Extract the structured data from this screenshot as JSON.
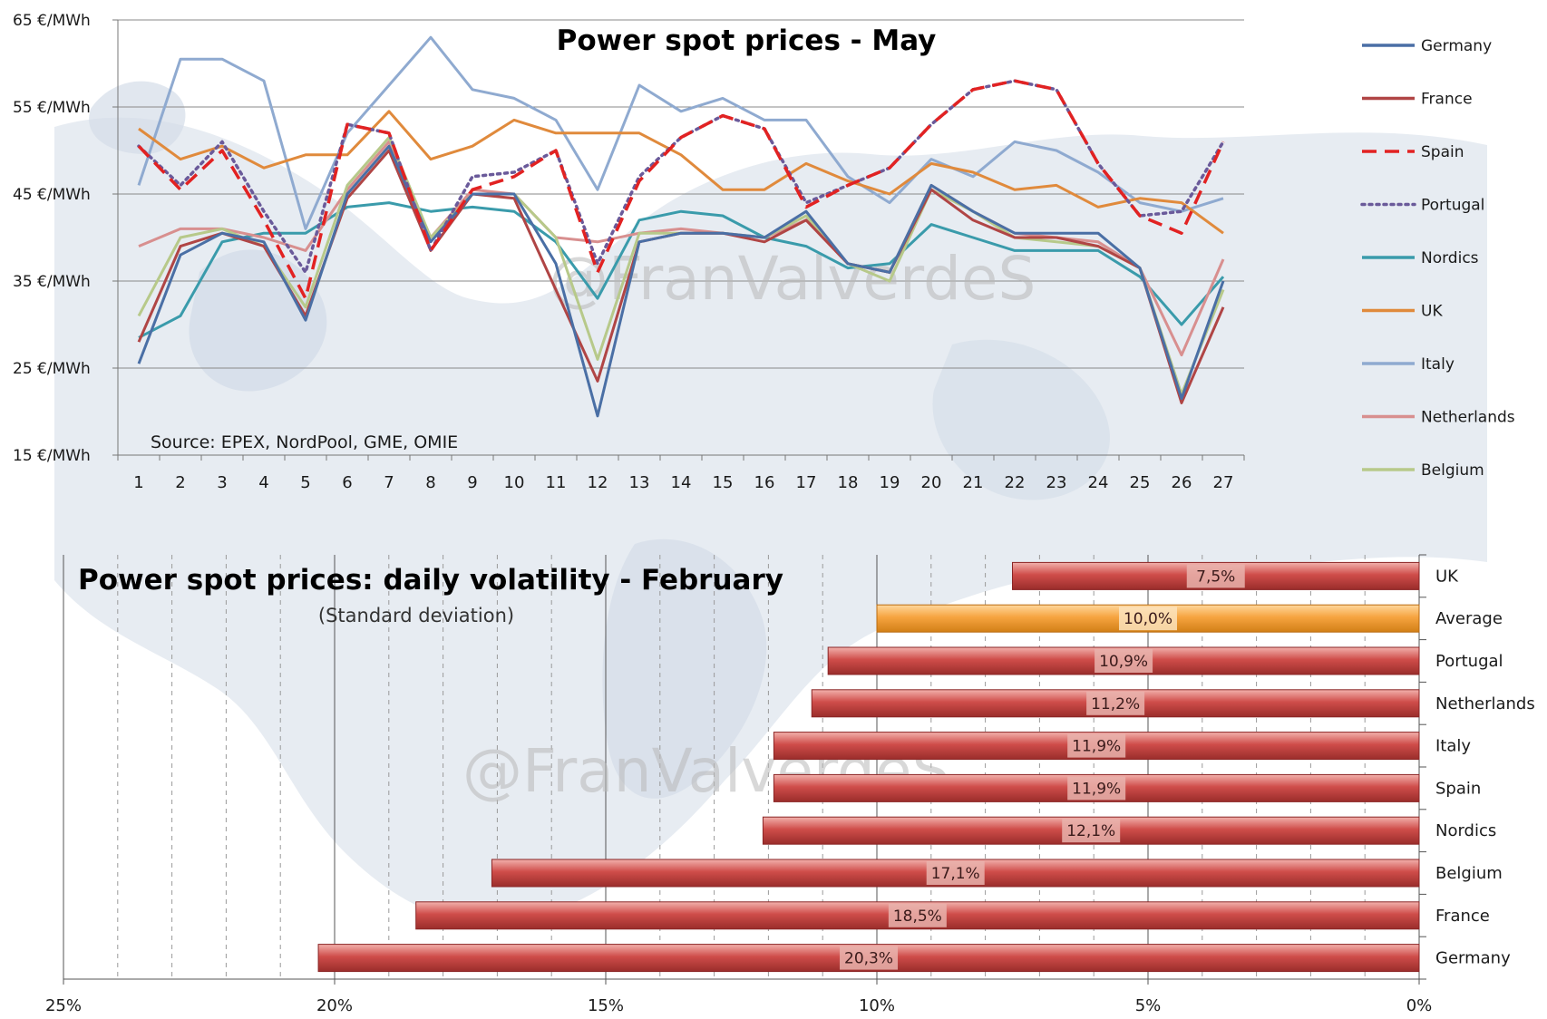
{
  "chart_data": [
    {
      "type": "line",
      "title": "Power spot prices - May",
      "source": "Source: EPEX, NordPool, GME, OMIE",
      "watermark": "@FranValverdeS",
      "ylim": [
        15,
        65
      ],
      "y_ticks": [
        "15 €/MWh",
        "25 €/MWh",
        "35 €/MWh",
        "45 €/MWh",
        "55 €/MWh",
        "65 €/MWh"
      ],
      "x": [
        "1",
        "2",
        "3",
        "4",
        "5",
        "6",
        "7",
        "8",
        "9",
        "10",
        "11",
        "12",
        "13",
        "14",
        "15",
        "16",
        "17",
        "18",
        "19",
        "20",
        "21",
        "22",
        "23",
        "24",
        "25",
        "26",
        "27"
      ],
      "grid": true,
      "legend_position": "right",
      "series": [
        {
          "name": "Germany",
          "color": "#4a6fa5",
          "dash": "solid",
          "values": [
            25.5,
            38,
            40.5,
            39.5,
            30.5,
            45,
            50.5,
            39.5,
            45,
            45,
            37,
            19.5,
            39.5,
            40.5,
            40.5,
            40,
            43,
            37,
            36,
            46,
            43,
            40.5,
            40.5,
            40.5,
            36.5,
            21.5,
            35
          ]
        },
        {
          "name": "France",
          "color": "#b04545",
          "dash": "solid",
          "values": [
            28,
            39,
            40.5,
            39,
            31,
            44.5,
            50,
            38.5,
            45,
            44.5,
            34,
            23.5,
            39.5,
            40.5,
            40.5,
            39.5,
            42,
            37,
            36,
            45.5,
            42,
            40,
            40,
            39,
            36.5,
            21,
            32
          ]
        },
        {
          "name": "Spain",
          "color": "#e22222",
          "dash": "dash",
          "values": [
            50.5,
            45.5,
            50,
            42,
            33,
            53,
            52,
            38.5,
            45.5,
            47,
            50,
            36,
            46.5,
            51.5,
            54,
            52.5,
            43.5,
            46,
            48,
            53,
            57,
            58,
            57,
            48.5,
            42.5,
            40.5,
            51
          ]
        },
        {
          "name": "Portugal",
          "color": "#6a5a9a",
          "dash": "dot",
          "values": [
            50.5,
            46,
            51,
            43,
            36,
            53,
            52,
            38.5,
            47,
            47.5,
            50,
            37,
            47,
            51.5,
            54,
            52.5,
            44,
            46,
            48,
            53,
            57,
            58,
            57,
            48.5,
            42.5,
            43,
            51
          ]
        },
        {
          "name": "Nordics",
          "color": "#3a9bab",
          "dash": "solid",
          "values": [
            28.5,
            31,
            39.5,
            40.5,
            40.5,
            43.5,
            44,
            43,
            43.5,
            43,
            39.5,
            33,
            42,
            43,
            42.5,
            40,
            39,
            36.5,
            37,
            41.5,
            40,
            38.5,
            38.5,
            38.5,
            35.5,
            30,
            35.5
          ]
        },
        {
          "name": "UK",
          "color": "#e08a3c",
          "dash": "solid",
          "values": [
            52.5,
            49,
            50.5,
            48,
            49.5,
            49.5,
            54.5,
            49,
            50.5,
            53.5,
            52,
            52,
            52,
            49.5,
            45.5,
            45.5,
            48.5,
            46.5,
            45,
            48.5,
            47.5,
            45.5,
            46,
            43.5,
            44.5,
            44,
            40.5
          ]
        },
        {
          "name": "Italy",
          "color": "#8faad0",
          "dash": "solid",
          "values": [
            46,
            60.5,
            60.5,
            58,
            41,
            52,
            57.5,
            63,
            57,
            56,
            53.5,
            45.5,
            57.5,
            54.5,
            56,
            53.5,
            53.5,
            47,
            44,
            49,
            47,
            51,
            50,
            47.5,
            44,
            43,
            44.5
          ]
        },
        {
          "name": "Netherlands",
          "color": "#d88f8f",
          "dash": "solid",
          "values": [
            39,
            41,
            41,
            40,
            38.5,
            45.5,
            51,
            40,
            45.5,
            45,
            40,
            39.5,
            40.5,
            41,
            40.5,
            40,
            42,
            37,
            36,
            46,
            43,
            40.5,
            40,
            39.5,
            36.5,
            26.5,
            37.5
          ]
        },
        {
          "name": "Belgium",
          "color": "#b7c98a",
          "dash": "solid",
          "values": [
            31,
            40,
            41,
            39,
            32,
            46,
            51.5,
            40,
            45,
            45,
            40,
            26,
            40.5,
            40.5,
            40.5,
            40,
            42.5,
            37,
            35,
            45.5,
            43,
            40,
            39.5,
            39,
            36.5,
            22,
            34
          ]
        }
      ]
    },
    {
      "type": "bar",
      "orientation": "horizontal",
      "title": "Power spot prices: daily volatility - February",
      "subtitle": "(Standard deviation)",
      "watermark": "@FranValverdeS",
      "xlim": [
        0,
        25
      ],
      "x_reversed": true,
      "x_ticks": [
        "25%",
        "20%",
        "15%",
        "10%",
        "5%",
        "0%"
      ],
      "categories": [
        "UK",
        "Average",
        "Portugal",
        "Netherlands",
        "Italy",
        "Spain",
        "Nordics",
        "Belgium",
        "France",
        "Germany"
      ],
      "values": [
        7.5,
        10.0,
        10.9,
        11.2,
        11.9,
        11.9,
        12.1,
        17.1,
        18.5,
        20.3
      ],
      "value_labels": [
        "7,5%",
        "10,0%",
        "10,9%",
        "11,2%",
        "11,9%",
        "11,9%",
        "12,1%",
        "17,1%",
        "18,5%",
        "20,3%"
      ],
      "colors": {
        "bar": "#c84a4a",
        "highlight": "#f5a742"
      },
      "highlight": "Average"
    }
  ]
}
